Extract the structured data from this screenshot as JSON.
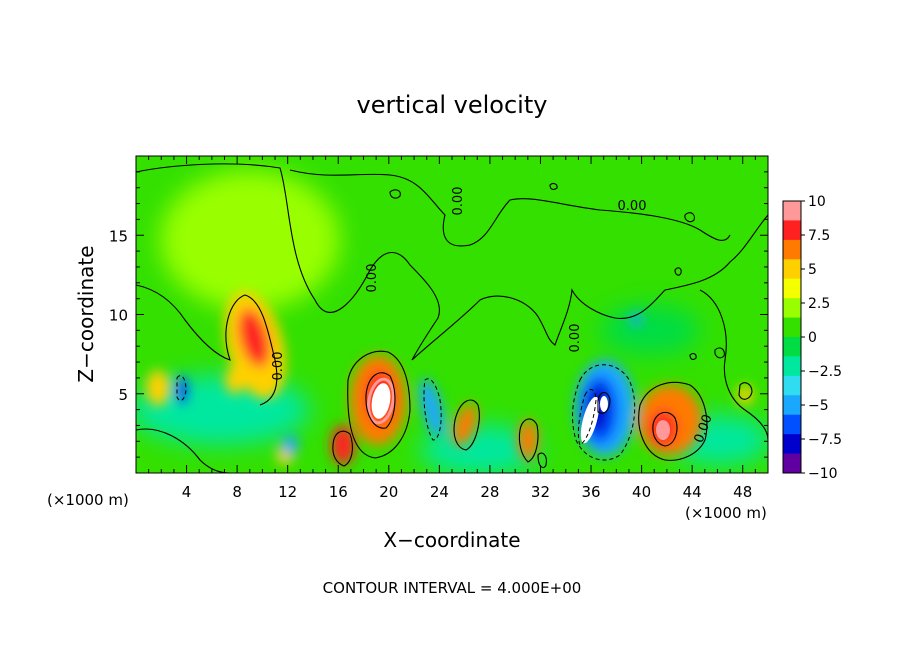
{
  "chart_data": {
    "type": "heatmap",
    "title": "vertical velocity",
    "xlabel": "X−coordinate",
    "ylabel": "Z−coordinate",
    "x_unit_label": "(×1000 m)",
    "z_unit_label": "(×1000 m)",
    "footer": "CONTOUR INTERVAL = 4.000E+00",
    "xlim": [
      0,
      50
    ],
    "ylim": [
      0,
      20
    ],
    "x_ticks": [
      4,
      8,
      12,
      16,
      20,
      24,
      28,
      32,
      36,
      40,
      44,
      48
    ],
    "x_tick_labels": [
      "4",
      "8",
      "12",
      "16",
      "20",
      "24",
      "28",
      "32",
      "36",
      "40",
      "44",
      "48"
    ],
    "y_ticks": [
      5,
      10,
      15
    ],
    "y_tick_labels": [
      "5",
      "10",
      "15"
    ],
    "colorbar": {
      "range": [
        -10,
        10
      ],
      "ticks": [
        10,
        7.5,
        5,
        2.5,
        0,
        -2.5,
        -5,
        -7.5,
        -10
      ],
      "tick_labels": [
        "10",
        "7.5",
        "5",
        "2.5",
        "0",
        "−2.5",
        "−5",
        "−7.5",
        "−10"
      ],
      "colors": [
        "#ff9999",
        "#ff2020",
        "#ff7a00",
        "#ffd000",
        "#f4ff00",
        "#99ff00",
        "#33e000",
        "#00dd44",
        "#00e8a0",
        "#30dcf0",
        "#1aa8ff",
        "#0050ff",
        "#0000cc",
        "#6000a0"
      ]
    },
    "contour_labels": [
      "0.00",
      "0.00",
      "0.00",
      "0.00",
      "0.00",
      "0.00"
    ],
    "features": [
      {
        "x": 9.6,
        "z": 8.3,
        "w": 8.5,
        "kind": "updraft"
      },
      {
        "x": 19.6,
        "z": 4.6,
        "w": 12.0,
        "kind": "updraft"
      },
      {
        "x": 16.4,
        "z": 1.7,
        "w": 8.0,
        "kind": "updraft"
      },
      {
        "x": 41.7,
        "z": 2.9,
        "w": 10.0,
        "kind": "updraft"
      },
      {
        "x": 30.8,
        "z": 2.0,
        "w": 7.0,
        "kind": "updraft"
      },
      {
        "x": 26.2,
        "z": 3.2,
        "w": 5.0,
        "kind": "updraft"
      },
      {
        "x": 35.6,
        "z": 3.2,
        "w": -9.0,
        "kind": "downdraft"
      },
      {
        "x": 23.3,
        "z": 4.5,
        "w": -4.5,
        "kind": "downdraft"
      }
    ]
  }
}
